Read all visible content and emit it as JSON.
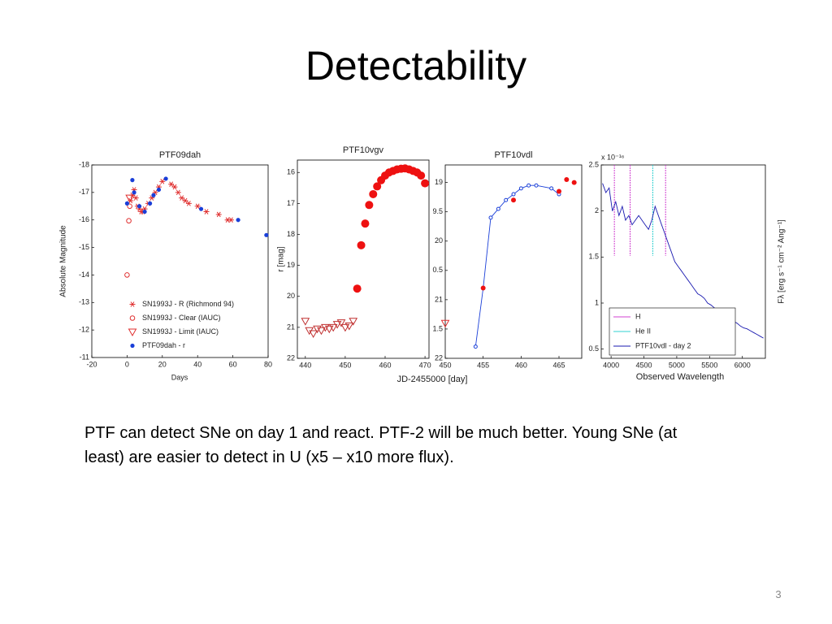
{
  "title": "Detectability",
  "body": "PTF can detect SNe on day 1 and react. PTF-2 will be much better. Young SNe  (at least) are easier to detect in U (x5 – x10 more flux).",
  "page_number": "3",
  "chart_data": [
    {
      "type": "scatter",
      "title": "PTF09dah",
      "xlabel": "Days",
      "ylabel": "Absolute Magnitude",
      "xlim": [
        -20,
        80
      ],
      "xticks": [
        -20,
        0,
        20,
        40,
        60,
        80
      ],
      "ylim": [
        -11,
        -18
      ],
      "yticks": [
        -18,
        -17,
        -16,
        -15,
        -14,
        -13,
        -12,
        -11
      ],
      "legend": "lower left",
      "series": [
        {
          "name": "SN1993J - R (Richmond 94)",
          "color": "#e03030",
          "marker": "asterisk",
          "x": [
            2,
            3,
            4,
            5,
            6,
            7,
            8,
            9,
            10,
            12,
            14,
            16,
            18,
            20,
            25,
            27,
            29,
            31,
            33,
            35,
            40,
            45,
            52,
            57,
            59
          ],
          "y": [
            -16.7,
            -16.9,
            -17.1,
            -16.8,
            -16.5,
            -16.4,
            -16.3,
            -16.3,
            -16.4,
            -16.6,
            -16.8,
            -17.0,
            -17.2,
            -17.4,
            -17.3,
            -17.2,
            -17.0,
            -16.8,
            -16.7,
            -16.6,
            -16.5,
            -16.3,
            -16.2,
            -16.0,
            -16.0
          ]
        },
        {
          "name": "SN1993J - Clear (IAUC)",
          "color": "#e03030",
          "marker": "circle-open",
          "x": [
            0,
            1,
            1.5
          ],
          "y": [
            -14.0,
            -15.97,
            -16.5
          ]
        },
        {
          "name": "SN1993J - Limit (IAUC)",
          "color": "#e03030",
          "marker": "triangle-open",
          "x": [
            1.5
          ],
          "y": [
            -16.8
          ]
        },
        {
          "name": "PTF09dah - r",
          "color": "#1a3fd8",
          "marker": "star",
          "x": [
            0,
            3,
            4,
            7,
            10,
            13,
            15,
            18,
            22,
            42,
            63,
            79
          ],
          "y": [
            -16.6,
            -17.45,
            -17.0,
            -16.5,
            -16.3,
            -16.6,
            -16.9,
            -17.1,
            -17.5,
            -16.4,
            -16.0,
            -15.45
          ]
        }
      ]
    },
    {
      "type": "scatter",
      "title": "PTF10vgv",
      "ylabel": "r [mag]",
      "xlim": [
        438,
        471
      ],
      "xticks": [
        440,
        450,
        460,
        470
      ],
      "ylim": [
        22,
        15.6
      ],
      "yticks": [
        16,
        17,
        18,
        19,
        20,
        21,
        22
      ],
      "series": [
        {
          "color": "#c03030",
          "marker": "triangle-open",
          "x": [
            440,
            441,
            442,
            443,
            444,
            445,
            446,
            447,
            448,
            449,
            450,
            451,
            452
          ],
          "y": [
            20.8,
            21.1,
            21.2,
            21.05,
            21.1,
            21.0,
            21.05,
            21.0,
            20.9,
            20.85,
            21.0,
            20.95,
            20.8
          ]
        },
        {
          "color": "#ee1111",
          "marker": "circle",
          "x": [
            453,
            454,
            455,
            456,
            457,
            458,
            459,
            460,
            461,
            462,
            463,
            464,
            465,
            466,
            467,
            468,
            469,
            470
          ],
          "y": [
            19.75,
            18.35,
            17.65,
            17.05,
            16.7,
            16.45,
            16.25,
            16.1,
            16.0,
            15.95,
            15.9,
            15.88,
            15.87,
            15.9,
            15.95,
            16.0,
            16.1,
            16.35
          ]
        }
      ]
    },
    {
      "type": "scatter",
      "title": "PTF10vdl",
      "xlabel": "JD-2455000 [day]",
      "xlim": [
        450,
        468
      ],
      "xticks": [
        450,
        455,
        460,
        465
      ],
      "ylim": [
        22,
        18.7
      ],
      "yticks": [
        19,
        {
          "value": 19.5,
          "label": "9.5"
        },
        20,
        {
          "value": 20.5,
          "label": "0.5"
        },
        21,
        {
          "value": 21.5,
          "label": "1.5"
        },
        22
      ],
      "series": [
        {
          "color": "#1a3fd8",
          "marker": "circle-small-open",
          "line": true,
          "x": [
            454,
            455,
            456,
            457,
            458,
            459,
            460,
            461,
            462,
            464,
            465
          ],
          "y": [
            21.8,
            20.8,
            19.6,
            19.45,
            19.3,
            19.2,
            19.1,
            19.05,
            19.05,
            19.1,
            19.2
          ]
        },
        {
          "color": "#ee1111",
          "marker": "dot",
          "x": [
            455,
            459,
            465,
            466,
            467
          ],
          "y": [
            20.8,
            19.3,
            19.15,
            18.95,
            19.0
          ]
        },
        {
          "color": "#e03030",
          "marker": "triangle-open",
          "x": [
            450
          ],
          "y": [
            21.4
          ]
        }
      ]
    },
    {
      "type": "line",
      "xlabel": "Observed Wavelength",
      "ylabel": "Fλ [erg s⁻¹ cm⁻² Ang⁻¹]",
      "y_multiplier": "x 10⁻¹⁶",
      "xlim": [
        3850,
        6350
      ],
      "xticks": [
        4000,
        4500,
        5000,
        5500,
        6000
      ],
      "ylim": [
        0.4,
        2.5
      ],
      "yticks": [
        0.5,
        1,
        1.5,
        2,
        2.5
      ],
      "legend": "lower left",
      "series": [
        {
          "name": "H",
          "color": "#d040d0",
          "marker": "vline",
          "x": [
            4050,
            4290,
            4830
          ]
        },
        {
          "name": "He II",
          "color": "#30d0d0",
          "marker": "vline",
          "x": [
            4635
          ]
        },
        {
          "name": "PTF10vdl - day 2",
          "color": "#1a1ab0",
          "line": true,
          "x": [
            3870,
            3920,
            3970,
            4020,
            4070,
            4120,
            4170,
            4220,
            4270,
            4320,
            4370,
            4420,
            4470,
            4520,
            4570,
            4620,
            4670,
            4720,
            4770,
            4820,
            4870,
            4920,
            4970,
            5020,
            5070,
            5120,
            5170,
            5220,
            5270,
            5320,
            5370,
            5420,
            5470,
            5520,
            5570,
            5620,
            5670,
            5720,
            5770,
            5820,
            5870,
            5920,
            5970,
            6020,
            6070,
            6120,
            6170,
            6220,
            6270,
            6320
          ],
          "y": [
            2.3,
            2.2,
            2.25,
            2.0,
            2.1,
            1.95,
            2.05,
            1.9,
            1.95,
            1.85,
            1.9,
            1.95,
            1.9,
            1.85,
            1.8,
            1.9,
            2.05,
            1.95,
            1.85,
            1.75,
            1.65,
            1.55,
            1.45,
            1.4,
            1.35,
            1.3,
            1.25,
            1.2,
            1.15,
            1.1,
            1.08,
            1.05,
            1.0,
            0.98,
            0.95,
            0.92,
            0.9,
            0.88,
            0.85,
            0.83,
            0.8,
            0.78,
            0.75,
            0.73,
            0.72,
            0.7,
            0.68,
            0.66,
            0.64,
            0.62
          ]
        }
      ]
    }
  ]
}
